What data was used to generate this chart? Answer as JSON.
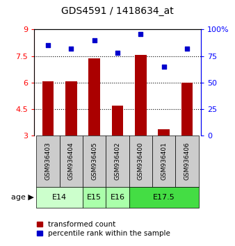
{
  "title": "GDS4591 / 1418634_at",
  "samples": [
    "GSM936403",
    "GSM936404",
    "GSM936405",
    "GSM936402",
    "GSM936400",
    "GSM936401",
    "GSM936406"
  ],
  "bar_values": [
    6.05,
    6.05,
    7.35,
    4.7,
    7.55,
    3.35,
    6.0
  ],
  "scatter_values": [
    85,
    82,
    90,
    78,
    96,
    65,
    82
  ],
  "age_groups": [
    {
      "label": "E14",
      "spans": [
        0,
        2
      ],
      "color": "#ccffcc"
    },
    {
      "label": "E15",
      "spans": [
        2,
        3
      ],
      "color": "#aaffaa"
    },
    {
      "label": "E16",
      "spans": [
        3,
        4
      ],
      "color": "#aaffaa"
    },
    {
      "label": "E17.5",
      "spans": [
        4,
        7
      ],
      "color": "#44dd44"
    }
  ],
  "bar_color": "#aa0000",
  "scatter_color": "#0000cc",
  "ylim_left": [
    3,
    9
  ],
  "ylim_right": [
    0,
    100
  ],
  "yticks_left": [
    3,
    4.5,
    6,
    7.5,
    9
  ],
  "ytick_labels_left": [
    "3",
    "4.5",
    "6",
    "7.5",
    "9"
  ],
  "yticks_right": [
    0,
    25,
    50,
    75,
    100
  ],
  "ytick_labels_right": [
    "0",
    "25",
    "50",
    "75",
    "100%"
  ],
  "dotted_lines": [
    4.5,
    6,
    7.5
  ],
  "legend_red_label": "transformed count",
  "legend_blue_label": "percentile rank within the sample",
  "age_label": "age",
  "bar_width": 0.5,
  "sample_box_color": "#cccccc",
  "fig_bg": "#ffffff"
}
